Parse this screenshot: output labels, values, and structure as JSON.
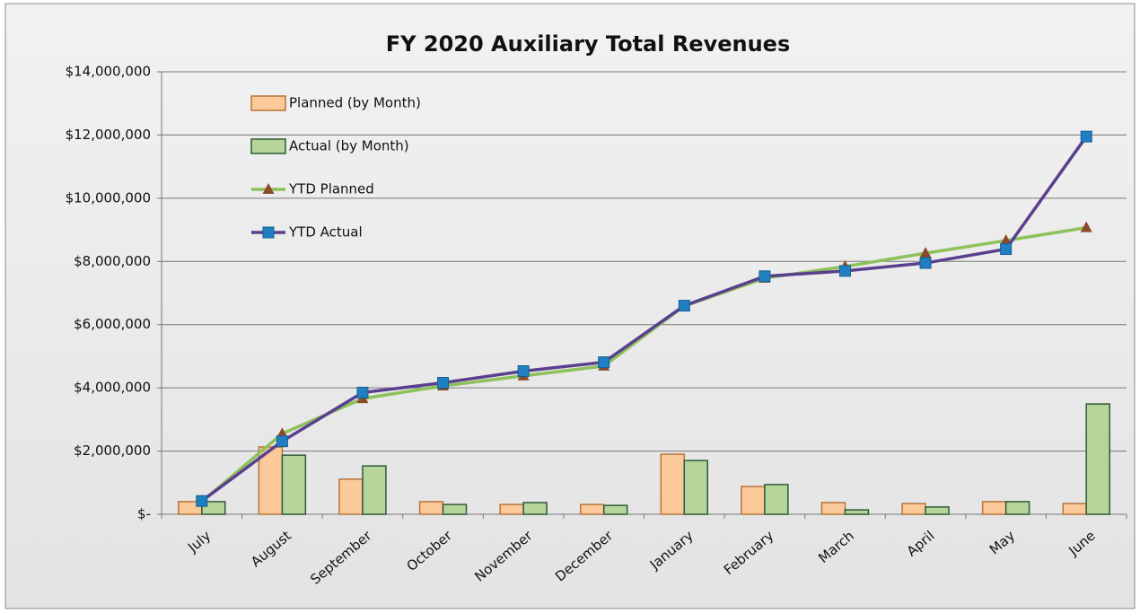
{
  "chart_data": {
    "type": "bar-line",
    "title": "FY 2020 Auxiliary Total Revenues",
    "categories": [
      "July",
      "August",
      "September",
      "October",
      "November",
      "December",
      "January",
      "February",
      "March",
      "April",
      "May",
      "June"
    ],
    "series": [
      {
        "name": "Planned (by Month)",
        "kind": "bar",
        "color": "#fbc99a",
        "border": "#b8743a",
        "values": [
          400000,
          2130000,
          1110000,
          400000,
          310000,
          310000,
          1900000,
          880000,
          370000,
          340000,
          400000,
          340000
        ]
      },
      {
        "name": "Actual (by Month)",
        "kind": "bar",
        "color": "#b5d59a",
        "border": "#2e5a3a",
        "values": [
          400000,
          1870000,
          1530000,
          310000,
          370000,
          280000,
          1700000,
          940000,
          140000,
          230000,
          400000,
          3490000
        ]
      },
      {
        "name": "YTD Planned",
        "kind": "line",
        "color": "#8dc15a",
        "marker": "triangle",
        "marker_color": "#8b4b2a",
        "values": [
          400000,
          2550000,
          3660000,
          4060000,
          4380000,
          4690000,
          6590000,
          7470000,
          7840000,
          8260000,
          8660000,
          9070000
        ]
      },
      {
        "name": "YTD Actual",
        "kind": "line",
        "color": "#5b3f8f",
        "marker": "square",
        "marker_color": "#1f7fc0",
        "values": [
          420000,
          2310000,
          3850000,
          4160000,
          4530000,
          4810000,
          6600000,
          7530000,
          7700000,
          7950000,
          8390000,
          11950000
        ]
      }
    ],
    "ylim": [
      0,
      14000000
    ],
    "yticks": [
      {
        "value": 0,
        "label": "$-"
      },
      {
        "value": 2000000,
        "label": "$2,000,000"
      },
      {
        "value": 4000000,
        "label": "$4,000,000"
      },
      {
        "value": 6000000,
        "label": "$6,000,000"
      },
      {
        "value": 8000000,
        "label": "$8,000,000"
      },
      {
        "value": 10000000,
        "label": "$10,000,000"
      },
      {
        "value": 12000000,
        "label": "$12,000,000"
      },
      {
        "value": 14000000,
        "label": "$14,000,000"
      }
    ],
    "grid": true,
    "legend": "upper-left"
  }
}
